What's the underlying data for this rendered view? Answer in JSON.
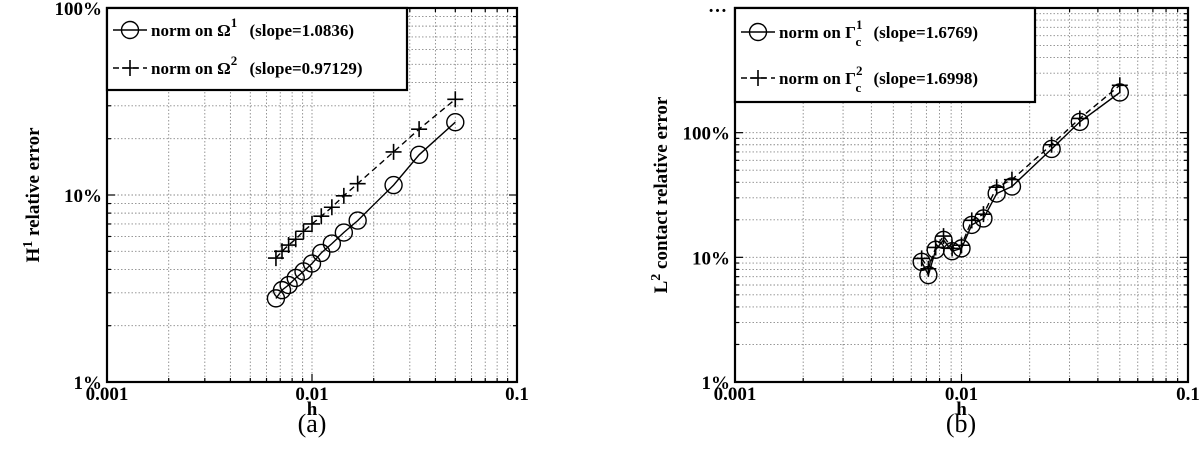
{
  "chart_data": [
    {
      "type": "line",
      "caption": "(a)",
      "xlabel": "h",
      "ylabel": "relative error",
      "ylabel_prefix": "H",
      "ylabel_sup": "1",
      "xscale": "log",
      "yscale": "log",
      "xlim": [
        0.001,
        0.1
      ],
      "ylim": [
        0.01,
        1
      ],
      "xticks": [
        0.001,
        0.01,
        0.1
      ],
      "xtick_labels": [
        "0.001",
        "0.01",
        "0.1"
      ],
      "yticks": [
        0.01,
        0.1,
        1
      ],
      "ytick_labels": [
        "1%",
        "10%",
        "100%"
      ],
      "grid": true,
      "legend_position": "top-left",
      "series": [
        {
          "legend_prefix": "norm on Ω",
          "legend_sup": "1",
          "legend_suffix": "(slope=1.0836)",
          "marker": "circle",
          "line": "solid",
          "x": [
            0.00667,
            0.00714,
            0.00769,
            0.00833,
            0.00909,
            0.01,
            0.0111,
            0.0125,
            0.0143,
            0.0167,
            0.025,
            0.0333,
            0.05
          ],
          "y": [
            0.028,
            0.031,
            0.033,
            0.036,
            0.039,
            0.043,
            0.049,
            0.055,
            0.063,
            0.073,
            0.113,
            0.164,
            0.245
          ]
        },
        {
          "legend_prefix": "norm on Ω",
          "legend_sup": "2",
          "legend_suffix": "(slope=0.97129)",
          "marker": "plus",
          "line": "dashed",
          "x": [
            0.00667,
            0.00714,
            0.00769,
            0.00833,
            0.00909,
            0.01,
            0.0111,
            0.0125,
            0.0143,
            0.0167,
            0.025,
            0.0333,
            0.05
          ],
          "y": [
            0.046,
            0.05,
            0.054,
            0.058,
            0.064,
            0.07,
            0.077,
            0.086,
            0.099,
            0.115,
            0.17,
            0.225,
            0.325
          ]
        }
      ]
    },
    {
      "type": "line",
      "caption": "(b)",
      "xlabel": "h",
      "ylabel": "contact relative error",
      "ylabel_prefix": "L",
      "ylabel_sup": "2",
      "xscale": "log",
      "yscale": "log",
      "xlim": [
        0.001,
        0.1
      ],
      "ylim": [
        0.01,
        10
      ],
      "xticks": [
        0.001,
        0.01,
        0.1
      ],
      "xtick_labels": [
        "0.001",
        "0.01",
        "0.1"
      ],
      "yticks": [
        0.01,
        0.1,
        1
      ],
      "ytick_labels": [
        "1%",
        "10%",
        "100%"
      ],
      "top_tick_label": "…",
      "grid": true,
      "legend_position": "top-left",
      "series": [
        {
          "legend_prefix": "norm on Γ",
          "legend_sup": "1",
          "legend_sub": "c",
          "legend_suffix": "(slope=1.6769)",
          "marker": "circle",
          "line": "solid",
          "x": [
            0.00667,
            0.00714,
            0.00769,
            0.00833,
            0.00909,
            0.01,
            0.0111,
            0.0125,
            0.0143,
            0.0167,
            0.025,
            0.0333,
            0.05
          ],
          "y": [
            0.092,
            0.072,
            0.115,
            0.138,
            0.112,
            0.118,
            0.182,
            0.205,
            0.325,
            0.37,
            0.74,
            1.22,
            2.1
          ]
        },
        {
          "legend_prefix": "norm on Γ",
          "legend_sup": "2",
          "legend_sub": "c",
          "legend_suffix": "(slope=1.6998)",
          "marker": "plus",
          "line": "dashed",
          "x": [
            0.00667,
            0.00714,
            0.00769,
            0.00833,
            0.00909,
            0.01,
            0.0111,
            0.0125,
            0.0143,
            0.0167,
            0.025,
            0.0333,
            0.05
          ],
          "y": [
            0.098,
            0.081,
            0.12,
            0.148,
            0.118,
            0.125,
            0.198,
            0.222,
            0.365,
            0.42,
            0.8,
            1.3,
            2.4
          ]
        }
      ]
    }
  ]
}
